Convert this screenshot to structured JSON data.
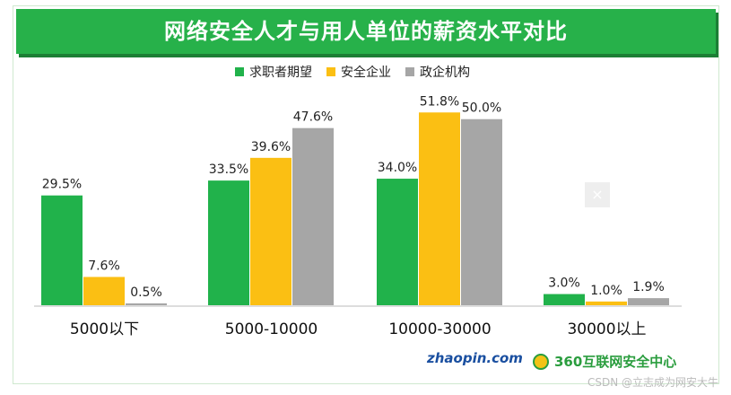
{
  "chart_data": {
    "type": "bar",
    "title": "网络安全人才与用人单位的薪资水平对比",
    "categories": [
      "5000以下",
      "5000-10000",
      "10000-30000",
      "30000以上"
    ],
    "series": [
      {
        "name": "求职者期望",
        "color": "#21b24b",
        "values": [
          29.5,
          33.5,
          34.0,
          3.0
        ],
        "labels": [
          "29.5%",
          "33.5%",
          "34.0%",
          "3.0%"
        ]
      },
      {
        "name": "安全企业",
        "color": "#fbbf13",
        "values": [
          7.6,
          39.6,
          51.8,
          1.0
        ],
        "labels": [
          "7.6%",
          "39.6%",
          "51.8%",
          "1.0%"
        ]
      },
      {
        "name": "政企机构",
        "color": "#a6a6a6",
        "values": [
          0.5,
          47.6,
          50.0,
          1.9
        ],
        "labels": [
          "0.5%",
          "47.6%",
          "50.0%",
          "1.9%"
        ]
      }
    ],
    "ylim": [
      0,
      55
    ],
    "grid": false,
    "legend": "top-center"
  },
  "brands": {
    "zhaopin": "zhaopin.com",
    "sec360": "360互联网安全中心"
  },
  "watermark": "CSDN @立志成为网安大牛",
  "icons": {
    "close": "close-icon"
  }
}
